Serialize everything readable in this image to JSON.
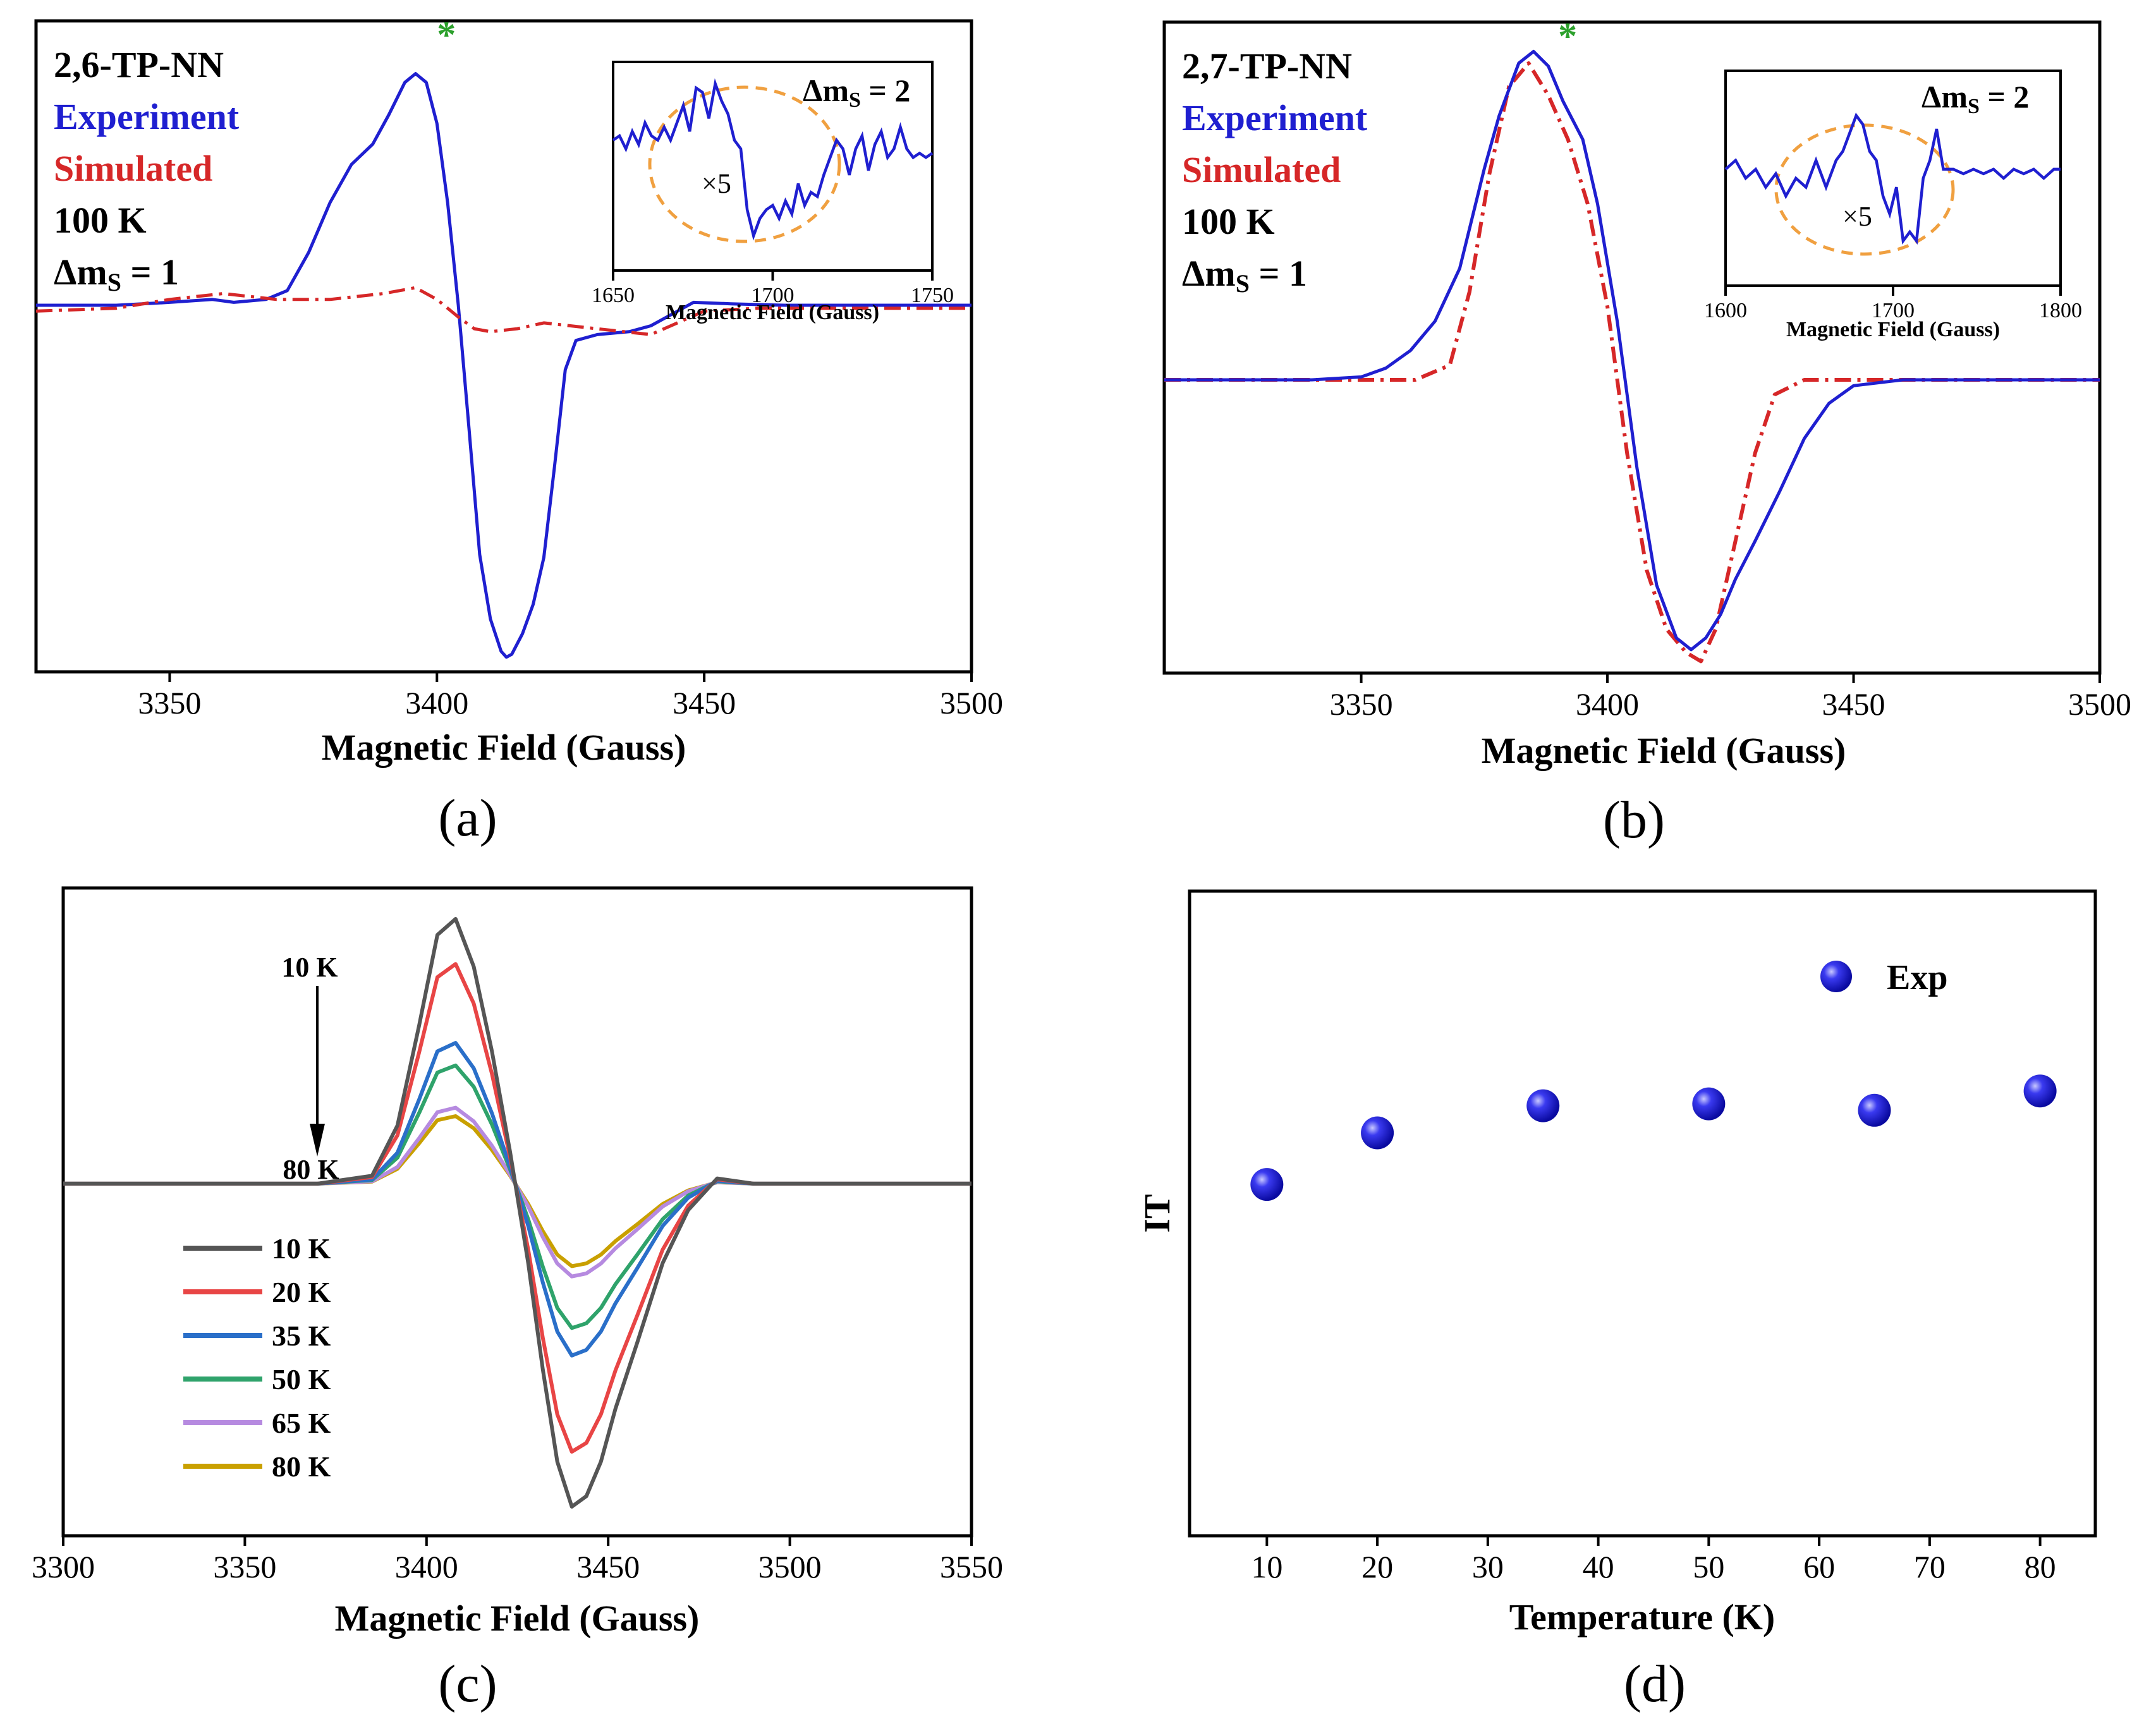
{
  "colors": {
    "experiment": "#1f1fd0",
    "simulated": "#d62728",
    "star": "#2ca02c",
    "inset_circle": "#f0a040",
    "axis": "#000000",
    "t10": "#555555",
    "t20": "#e84545",
    "t35": "#2a6fc9",
    "t50": "#2fa36b",
    "t65": "#b68ae0",
    "t80": "#c9a000",
    "exp_dot": "#1a1ae6"
  },
  "panels": {
    "a": {
      "caption": "(a)"
    },
    "b": {
      "caption": "(b)"
    },
    "c": {
      "caption": "(c)"
    },
    "d": {
      "caption": "(d)"
    }
  },
  "chart_data": [
    {
      "id": "a",
      "type": "line",
      "xlabel": "Magnetic Field (Gauss)",
      "ylabel": "",
      "xlim": [
        3325,
        3500
      ],
      "ylim": [
        -1.25,
        0.97
      ],
      "xticks": [
        3350,
        3400,
        3450,
        3500
      ],
      "labels": {
        "sample": "2,6-TP-NN",
        "experiment": "Experiment",
        "simulated": "Simulated",
        "temp": "100 K",
        "dms_main": "1"
      },
      "star": {
        "x": 3400,
        "y": 0.88,
        "text": "*"
      },
      "series": [
        {
          "name": "Experiment",
          "style": "solid",
          "x": [
            3325,
            3340,
            3350,
            3358,
            3362,
            3368,
            3372,
            3376,
            3380,
            3384,
            3388,
            3391,
            3394,
            3396,
            3398,
            3400,
            3402,
            3404,
            3406,
            3408,
            3410,
            3412,
            3413,
            3414,
            3416,
            3418,
            3420,
            3422,
            3424,
            3426,
            3430,
            3436,
            3440,
            3445,
            3448,
            3455,
            3465,
            3480,
            3500
          ],
          "y": [
            0,
            0,
            0.01,
            0.02,
            0.01,
            0.02,
            0.05,
            0.18,
            0.35,
            0.48,
            0.55,
            0.65,
            0.76,
            0.79,
            0.76,
            0.62,
            0.35,
            0,
            -0.42,
            -0.85,
            -1.07,
            -1.18,
            -1.2,
            -1.19,
            -1.12,
            -1.02,
            -0.86,
            -0.55,
            -0.22,
            -0.12,
            -0.1,
            -0.09,
            -0.07,
            -0.02,
            0.01,
            0.005,
            0,
            0,
            0
          ]
        },
        {
          "name": "Simulated",
          "style": "dashdot",
          "x": [
            3325,
            3340,
            3350,
            3360,
            3370,
            3380,
            3390,
            3396,
            3400,
            3404,
            3407,
            3410,
            3415,
            3420,
            3430,
            3440,
            3450,
            3460,
            3480,
            3500
          ],
          "y": [
            -0.02,
            -0.01,
            0.02,
            0.04,
            0.02,
            0.02,
            0.04,
            0.06,
            0.02,
            -0.04,
            -0.08,
            -0.09,
            -0.08,
            -0.06,
            -0.08,
            -0.1,
            -0.02,
            -0.01,
            -0.01,
            -0.01
          ]
        }
      ],
      "inset": {
        "xlim": [
          1650,
          1750
        ],
        "ylim": [
          -1.2,
          1.2
        ],
        "xticks": [
          1650,
          1700,
          1750
        ],
        "xlabel": "Magnetic Field (Gauss)",
        "dms": "2",
        "scale": "×5",
        "x": [
          1650,
          1652,
          1654,
          1656,
          1658,
          1660,
          1662,
          1664,
          1666,
          1668,
          1670,
          1672,
          1674,
          1676,
          1678,
          1680,
          1682,
          1684,
          1686,
          1688,
          1690,
          1692,
          1694,
          1696,
          1698,
          1700,
          1702,
          1704,
          1706,
          1708,
          1710,
          1712,
          1714,
          1716,
          1718,
          1720,
          1722,
          1724,
          1726,
          1728,
          1730,
          1732,
          1734,
          1736,
          1738,
          1740,
          1742,
          1744,
          1746,
          1748,
          1750
        ],
        "y": [
          0.3,
          0.35,
          0.2,
          0.4,
          0.25,
          0.5,
          0.35,
          0.3,
          0.45,
          0.3,
          0.5,
          0.7,
          0.4,
          0.9,
          0.85,
          0.55,
          0.95,
          0.75,
          0.6,
          0.3,
          0.2,
          -0.5,
          -0.8,
          -0.6,
          -0.5,
          -0.45,
          -0.6,
          -0.4,
          -0.55,
          -0.2,
          -0.45,
          -0.3,
          -0.35,
          -0.1,
          0.1,
          0.3,
          0.2,
          -0.1,
          0.2,
          0.35,
          -0.05,
          0.25,
          0.4,
          0.1,
          0.2,
          0.45,
          0.2,
          0.1,
          0.15,
          0.1,
          0.15
        ]
      }
    },
    {
      "id": "b",
      "type": "line",
      "xlabel": "Magnetic Field (Gauss)",
      "ylabel": "",
      "xlim": [
        3310,
        3500
      ],
      "ylim": [
        -1.0,
        1.22
      ],
      "xticks": [
        3350,
        3400,
        3450,
        3500
      ],
      "labels": {
        "sample": "2,7-TP-NN",
        "experiment": "Experiment",
        "simulated": "Simulated",
        "temp": "100 K",
        "dms_main": "1"
      },
      "star": {
        "x": 3390,
        "y": 1.13,
        "text": "*"
      },
      "series": [
        {
          "name": "Experiment",
          "style": "solid",
          "x": [
            3310,
            3340,
            3350,
            3355,
            3360,
            3365,
            3370,
            3375,
            3378,
            3382,
            3385,
            3388,
            3391,
            3395,
            3398,
            3402,
            3406,
            3410,
            3414,
            3417,
            3420,
            3423,
            3426,
            3430,
            3435,
            3440,
            3445,
            3450,
            3460,
            3480,
            3500
          ],
          "y": [
            0,
            0,
            0.01,
            0.04,
            0.1,
            0.2,
            0.38,
            0.72,
            0.9,
            1.08,
            1.12,
            1.07,
            0.95,
            0.82,
            0.6,
            0.2,
            -0.3,
            -0.7,
            -0.88,
            -0.92,
            -0.88,
            -0.8,
            -0.68,
            -0.55,
            -0.38,
            -0.2,
            -0.08,
            -0.02,
            0,
            0,
            0
          ]
        },
        {
          "name": "Simulated",
          "style": "dashdot",
          "x": [
            3310,
            3350,
            3361,
            3368,
            3372,
            3376,
            3380,
            3384,
            3388,
            3392,
            3396,
            3400,
            3404,
            3408,
            3412,
            3416,
            3419,
            3422,
            3426,
            3430,
            3434,
            3440,
            3450,
            3500
          ],
          "y": [
            0,
            0,
            0,
            0.05,
            0.3,
            0.7,
            1.0,
            1.08,
            0.97,
            0.82,
            0.6,
            0.25,
            -0.25,
            -0.65,
            -0.85,
            -0.93,
            -0.96,
            -0.85,
            -0.55,
            -0.25,
            -0.05,
            0,
            0,
            0
          ]
        }
      ],
      "inset": {
        "xlim": [
          1600,
          1800
        ],
        "ylim": [
          -1.2,
          1.2
        ],
        "xticks": [
          1600,
          1700,
          1800
        ],
        "xlabel": "Magnetic Field (Gauss)",
        "dms": "2",
        "scale": "×5",
        "x": [
          1600,
          1606,
          1612,
          1618,
          1624,
          1630,
          1636,
          1642,
          1648,
          1654,
          1660,
          1666,
          1670,
          1674,
          1678,
          1682,
          1686,
          1690,
          1694,
          1698,
          1702,
          1706,
          1710,
          1714,
          1718,
          1722,
          1726,
          1730,
          1736,
          1742,
          1748,
          1754,
          1760,
          1766,
          1772,
          1778,
          1784,
          1790,
          1796,
          1800
        ],
        "y": [
          0.1,
          0.2,
          0,
          0.1,
          -0.1,
          0.05,
          -0.2,
          0,
          -0.1,
          0.2,
          -0.1,
          0.2,
          0.3,
          0.5,
          0.7,
          0.6,
          0.3,
          0.2,
          -0.2,
          -0.4,
          -0.1,
          -0.7,
          -0.6,
          -0.7,
          0,
          0.2,
          0.55,
          0.1,
          0.1,
          0.05,
          0.1,
          0.05,
          0.1,
          0.0,
          0.1,
          0.05,
          0.1,
          0.0,
          0.1,
          0.1
        ]
      }
    },
    {
      "id": "c",
      "type": "line",
      "xlabel": "Magnetic Field (Gauss)",
      "ylabel": "",
      "xlim": [
        3300,
        3550
      ],
      "ylim": [
        -1.25,
        1.05
      ],
      "xticks": [
        3300,
        3350,
        3400,
        3450,
        3500,
        3550
      ],
      "arrow": {
        "top": "10 K",
        "bottom": "80 K"
      },
      "series": [
        {
          "name": "10 K",
          "colorKey": "t10",
          "amp": 0.94
        },
        {
          "name": "20 K",
          "colorKey": "t20",
          "amp": 0.78
        },
        {
          "name": "35 K",
          "colorKey": "t35",
          "amp": 0.5
        },
        {
          "name": "50 K",
          "colorKey": "t50",
          "amp": 0.42
        },
        {
          "name": "65 K",
          "colorKey": "t65",
          "amp": 0.27
        },
        {
          "name": "80 K",
          "colorKey": "t80",
          "amp": 0.24
        }
      ],
      "shape": {
        "x": [
          3300,
          3370,
          3385,
          3392,
          3398,
          3403,
          3408,
          3413,
          3418,
          3423,
          3428,
          3432,
          3436,
          3440,
          3444,
          3448,
          3452,
          3458,
          3465,
          3472,
          3480,
          3490,
          3550
        ],
        "y": [
          0,
          0,
          0.03,
          0.22,
          0.6,
          0.94,
          1.0,
          0.82,
          0.5,
          0.12,
          -0.3,
          -0.7,
          -1.05,
          -1.22,
          -1.18,
          -1.05,
          -0.85,
          -0.6,
          -0.3,
          -0.1,
          0.02,
          0.0,
          0.0
        ]
      }
    },
    {
      "id": "d",
      "type": "scatter",
      "xlabel": "Temperature (K)",
      "ylabel": "IT",
      "xlim": [
        3,
        85
      ],
      "ylim": [
        0,
        10
      ],
      "xticks": [
        10,
        20,
        30,
        40,
        50,
        60,
        70,
        80
      ],
      "legend": "Exp",
      "x": [
        10,
        20,
        35,
        50,
        65,
        80
      ],
      "y": [
        5.45,
        6.25,
        6.67,
        6.7,
        6.6,
        6.9
      ]
    }
  ]
}
